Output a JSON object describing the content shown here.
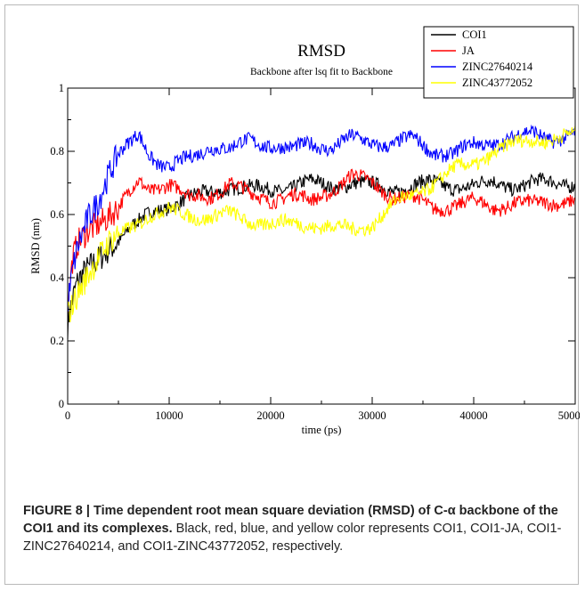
{
  "chart_data": {
    "type": "line",
    "title": "RMSD",
    "subtitle": "Backbone after lsq fit to Backbone",
    "xlabel": "time (ps)",
    "ylabel": "RMSD (nm)",
    "xlim": [
      0,
      50000
    ],
    "ylim": [
      0,
      1
    ],
    "xticks": [
      0,
      10000,
      20000,
      30000,
      40000,
      50000
    ],
    "yticks": [
      0,
      0.2,
      0.4,
      0.6,
      0.8,
      1
    ],
    "xtick_labels": [
      "0",
      "10000",
      "20000",
      "30000",
      "40000",
      "50000"
    ],
    "ytick_labels": [
      "0",
      "0.2",
      "0.4",
      "0.6",
      "0.8",
      "1"
    ],
    "grid": false,
    "legend_position": "top-right",
    "series": [
      {
        "name": "COI1",
        "color": "#000000",
        "x": [
          0,
          500,
          1000,
          2000,
          3000,
          4000,
          5000,
          6000,
          7000,
          8000,
          9000,
          10000,
          12000,
          14000,
          16000,
          18000,
          20000,
          22000,
          24000,
          26000,
          28000,
          30000,
          32000,
          34000,
          36000,
          38000,
          40000,
          42000,
          44000,
          46000,
          48000,
          50000
        ],
        "y": [
          0.25,
          0.33,
          0.38,
          0.42,
          0.46,
          0.5,
          0.52,
          0.55,
          0.57,
          0.6,
          0.62,
          0.63,
          0.65,
          0.67,
          0.69,
          0.68,
          0.68,
          0.69,
          0.7,
          0.69,
          0.7,
          0.69,
          0.68,
          0.69,
          0.7,
          0.69,
          0.69,
          0.7,
          0.69,
          0.7,
          0.7,
          0.7
        ]
      },
      {
        "name": "JA",
        "color": "#ff0000",
        "x": [
          0,
          500,
          1000,
          2000,
          3000,
          4000,
          5000,
          6000,
          7000,
          8000,
          9000,
          10000,
          12000,
          14000,
          16000,
          18000,
          20000,
          22000,
          24000,
          26000,
          28000,
          30000,
          32000,
          34000,
          36000,
          38000,
          40000,
          42000,
          44000,
          46000,
          48000,
          50000
        ],
        "y": [
          0.3,
          0.45,
          0.5,
          0.55,
          0.58,
          0.6,
          0.62,
          0.66,
          0.7,
          0.68,
          0.69,
          0.7,
          0.65,
          0.66,
          0.7,
          0.66,
          0.65,
          0.66,
          0.64,
          0.68,
          0.72,
          0.7,
          0.66,
          0.65,
          0.62,
          0.63,
          0.64,
          0.62,
          0.64,
          0.63,
          0.64,
          0.65
        ]
      },
      {
        "name": "ZINC27640214",
        "color": "#0000ff",
        "x": [
          0,
          500,
          1000,
          2000,
          3000,
          4000,
          5000,
          6000,
          7000,
          8000,
          9000,
          10000,
          12000,
          14000,
          16000,
          18000,
          20000,
          22000,
          24000,
          26000,
          28000,
          30000,
          32000,
          34000,
          36000,
          38000,
          40000,
          42000,
          44000,
          46000,
          48000,
          50000
        ],
        "y": [
          0.3,
          0.42,
          0.5,
          0.6,
          0.65,
          0.72,
          0.78,
          0.82,
          0.86,
          0.8,
          0.76,
          0.74,
          0.78,
          0.82,
          0.8,
          0.84,
          0.82,
          0.8,
          0.83,
          0.81,
          0.84,
          0.83,
          0.82,
          0.84,
          0.8,
          0.79,
          0.82,
          0.83,
          0.84,
          0.86,
          0.84,
          0.85
        ]
      },
      {
        "name": "ZINC43772052",
        "color": "#ffff00",
        "x": [
          0,
          500,
          1000,
          2000,
          3000,
          4000,
          5000,
          6000,
          7000,
          8000,
          9000,
          10000,
          12000,
          14000,
          16000,
          18000,
          20000,
          22000,
          24000,
          26000,
          28000,
          30000,
          32000,
          34000,
          36000,
          38000,
          40000,
          42000,
          44000,
          46000,
          48000,
          50000
        ],
        "y": [
          0.28,
          0.32,
          0.36,
          0.42,
          0.46,
          0.5,
          0.53,
          0.56,
          0.58,
          0.6,
          0.6,
          0.61,
          0.6,
          0.59,
          0.6,
          0.58,
          0.57,
          0.57,
          0.57,
          0.56,
          0.55,
          0.57,
          0.63,
          0.66,
          0.7,
          0.74,
          0.76,
          0.8,
          0.82,
          0.84,
          0.84,
          0.85
        ]
      }
    ]
  },
  "caption": {
    "label": "FIGURE 8 | Time dependent root mean square deviation (RMSD) of C-α backbone of the COI1 and its complexes.",
    "text": " Black, red, blue, and yellow color represents COI1, COI1-JA, COI1-ZINC27640214, and COI1-ZINC43772052, respectively."
  }
}
